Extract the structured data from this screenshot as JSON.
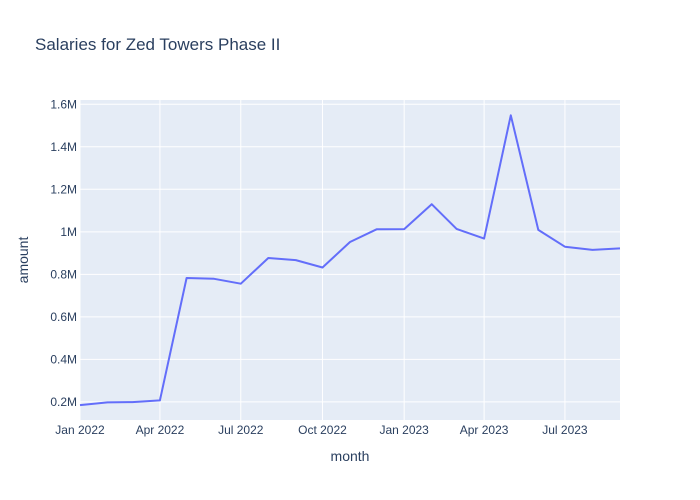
{
  "chart_data": {
    "type": "line",
    "title": "Salaries for Zed Towers Phase II",
    "xlabel": "month",
    "ylabel": "amount",
    "x": [
      "2022-01",
      "2022-02",
      "2022-03",
      "2022-04",
      "2022-05",
      "2022-06",
      "2022-07",
      "2022-08",
      "2022-09",
      "2022-10",
      "2022-11",
      "2022-12",
      "2023-01",
      "2023-02",
      "2023-03",
      "2023-04",
      "2023-05",
      "2023-06",
      "2023-07",
      "2023-08",
      "2023-09"
    ],
    "series": [
      {
        "values": [
          185000,
          198000,
          199000,
          207000,
          783000,
          779000,
          756000,
          877000,
          867000,
          832000,
          952000,
          1012000,
          1013000,
          1130000,
          1014000,
          968000,
          1548000,
          1009000,
          930000,
          915000,
          922000
        ]
      }
    ],
    "xlim": [
      "2022-01-01",
      "2023-09-01"
    ],
    "ylim": [
      115000,
      1620000
    ],
    "xticks": [
      {
        "date": "2022-01-01",
        "label": "Jan 2022"
      },
      {
        "date": "2022-04-01",
        "label": "Apr 2022"
      },
      {
        "date": "2022-07-01",
        "label": "Jul 2022"
      },
      {
        "date": "2022-10-01",
        "label": "Oct 2022"
      },
      {
        "date": "2023-01-01",
        "label": "Jan 2023"
      },
      {
        "date": "2023-04-01",
        "label": "Apr 2023"
      },
      {
        "date": "2023-07-01",
        "label": "Jul 2023"
      }
    ],
    "yticks": [
      {
        "value": 200000,
        "label": "0.2M"
      },
      {
        "value": 400000,
        "label": "0.4M"
      },
      {
        "value": 600000,
        "label": "0.6M"
      },
      {
        "value": 800000,
        "label": "0.8M"
      },
      {
        "value": 1000000,
        "label": "1M"
      },
      {
        "value": 1200000,
        "label": "1.2M"
      },
      {
        "value": 1400000,
        "label": "1.4M"
      },
      {
        "value": 1600000,
        "label": "1.6M"
      }
    ],
    "grid": true,
    "colors": {
      "line": "#636efa",
      "plot_background": "#e5ecf6",
      "grid": "#ffffff",
      "text": "#2a3f5f"
    }
  }
}
